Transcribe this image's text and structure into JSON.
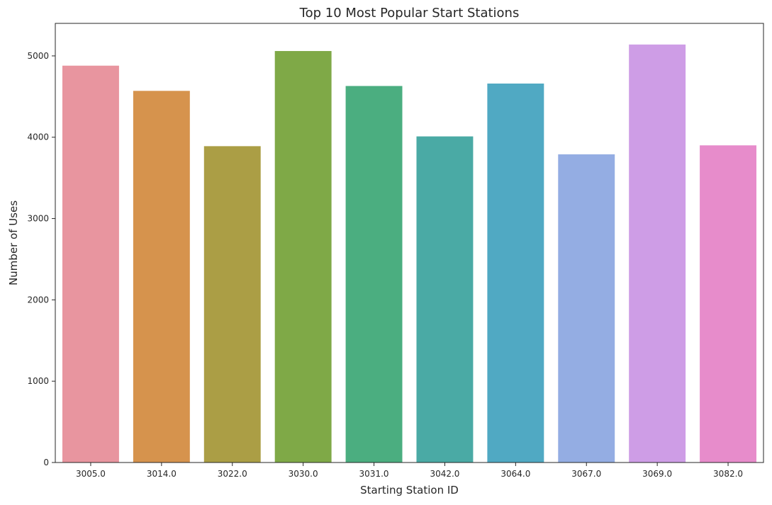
{
  "chart_data": {
    "type": "bar",
    "title": "Top 10 Most Popular Start Stations",
    "xlabel": "Starting Station ID",
    "ylabel": "Number of Uses",
    "categories": [
      "3005.0",
      "3014.0",
      "3022.0",
      "3030.0",
      "3031.0",
      "3042.0",
      "3064.0",
      "3067.0",
      "3069.0",
      "3082.0"
    ],
    "values": [
      4880,
      4570,
      3890,
      5060,
      4630,
      4010,
      4660,
      3790,
      5140,
      3900
    ],
    "colors": [
      "#e8959f",
      "#d6934d",
      "#ab9e45",
      "#7fa947",
      "#4bae80",
      "#4aaaa5",
      "#50a9c3",
      "#94adE3",
      "#ce9de6",
      "#e78ccb"
    ],
    "ylim": [
      0,
      5400
    ],
    "yticks": [
      0,
      1000,
      2000,
      3000,
      4000,
      5000
    ],
    "grid": false,
    "legend": "none"
  }
}
